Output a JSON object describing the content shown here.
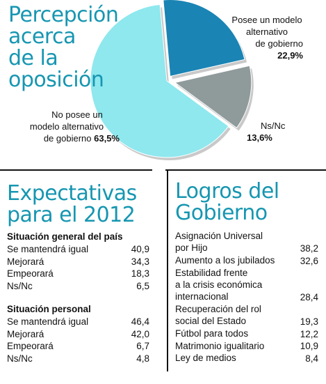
{
  "pie": {
    "title_lines": [
      "Percepción",
      "acerca",
      "de la",
      "oposición"
    ],
    "label_posee_lines": [
      "Posee un modelo",
      "alternativo",
      "de gobierno"
    ],
    "label_posee_pct": "22,9%",
    "label_nsnc": "Ns/Nc",
    "label_nsnc_pct": "13,6%",
    "label_noposee_lines": [
      "No posee un",
      "modelo alternativo",
      "de gobierno"
    ],
    "label_noposee_pct": "63,5%"
  },
  "chart_data": {
    "type": "pie",
    "title": "Percepción acerca de la oposición",
    "slices": [
      {
        "label": "Posee un modelo alternativo de gobierno",
        "value": 22.9,
        "color": "#1a84b4"
      },
      {
        "label": "Ns/Nc",
        "value": 13.6,
        "color": "#8f9a9b"
      },
      {
        "label": "No posee un modelo alternativo de gobierno",
        "value": 63.5,
        "color": "#8ee8ee"
      }
    ]
  },
  "expectativas": {
    "title_lines": [
      "Expectativas",
      "para el 2012"
    ],
    "general_head": "Situación general del país",
    "general": [
      {
        "label": "Se mantendrá igual",
        "value": "40,9"
      },
      {
        "label": "Mejorará",
        "value": "34,3"
      },
      {
        "label": "Empeorará",
        "value": "18,3"
      },
      {
        "label": "Ns/Nc",
        "value": "6,5"
      }
    ],
    "personal_head": "Situación personal",
    "personal": [
      {
        "label": "Se mantendrá igual",
        "value": "46,4"
      },
      {
        "label": "Mejorará",
        "value": "42,0"
      },
      {
        "label": "Empeorará",
        "value": "6,7"
      },
      {
        "label": "Ns/Nc",
        "value": "4,8"
      }
    ]
  },
  "logros": {
    "title_lines": [
      "Logros del",
      "Gobierno"
    ],
    "items": [
      {
        "label_lines": [
          "Asignación Universal",
          "por Hijo"
        ],
        "value": "38,2"
      },
      {
        "label_lines": [
          "Aumento a los jubilados"
        ],
        "value": "32,6"
      },
      {
        "label_lines": [
          "Estabilidad frente",
          "a la crisis económica",
          "internacional"
        ],
        "value": "28,4"
      },
      {
        "label_lines": [
          "Recuperación del rol",
          "social del Estado"
        ],
        "value": "19,3"
      },
      {
        "label_lines": [
          "Fútbol para todos"
        ],
        "value": "12,2"
      },
      {
        "label_lines": [
          "Matrimonio igualitario"
        ],
        "value": "10,9"
      },
      {
        "label_lines": [
          "Ley de medios"
        ],
        "value": "8,4"
      }
    ]
  }
}
